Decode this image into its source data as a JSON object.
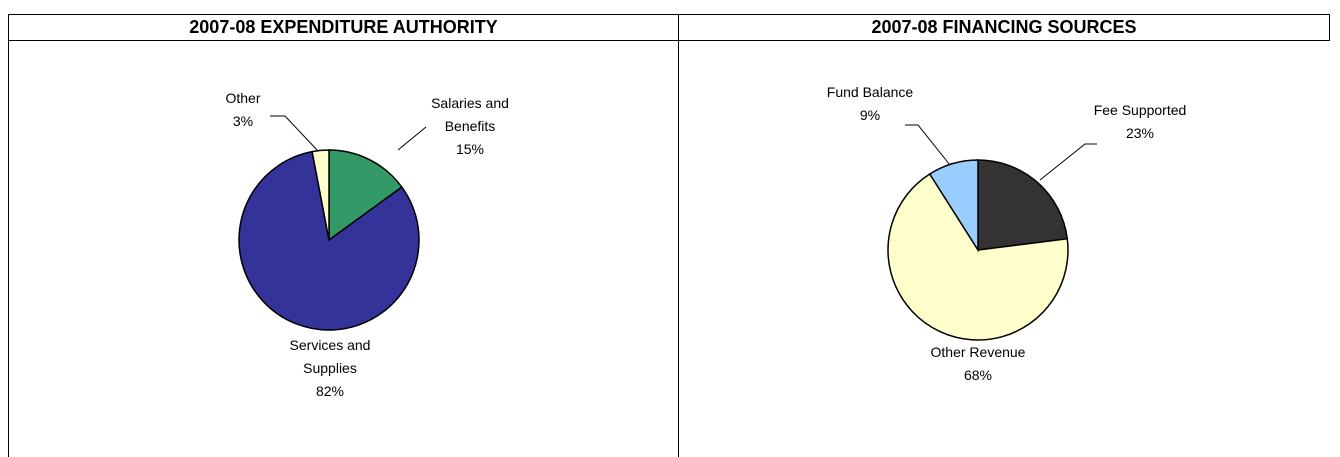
{
  "chart_data": [
    {
      "type": "pie",
      "title": "2007-08 EXPENDITURE AUTHORITY",
      "categories": [
        "Salaries and Benefits",
        "Services and Supplies",
        "Other"
      ],
      "values": [
        15,
        82,
        3
      ],
      "value_labels": [
        "15%",
        "82%",
        "3%"
      ],
      "colors": [
        "#339966",
        "#333399",
        "#ffffcc"
      ]
    },
    {
      "type": "pie",
      "title": "2007-08 FINANCING SOURCES",
      "categories": [
        "Fee Supported",
        "Other Revenue",
        "Fund Balance"
      ],
      "values": [
        23,
        68,
        9
      ],
      "value_labels": [
        "23%",
        "68%",
        "9%"
      ],
      "colors": [
        "#333333",
        "#ffffcc",
        "#99ccff"
      ]
    }
  ]
}
